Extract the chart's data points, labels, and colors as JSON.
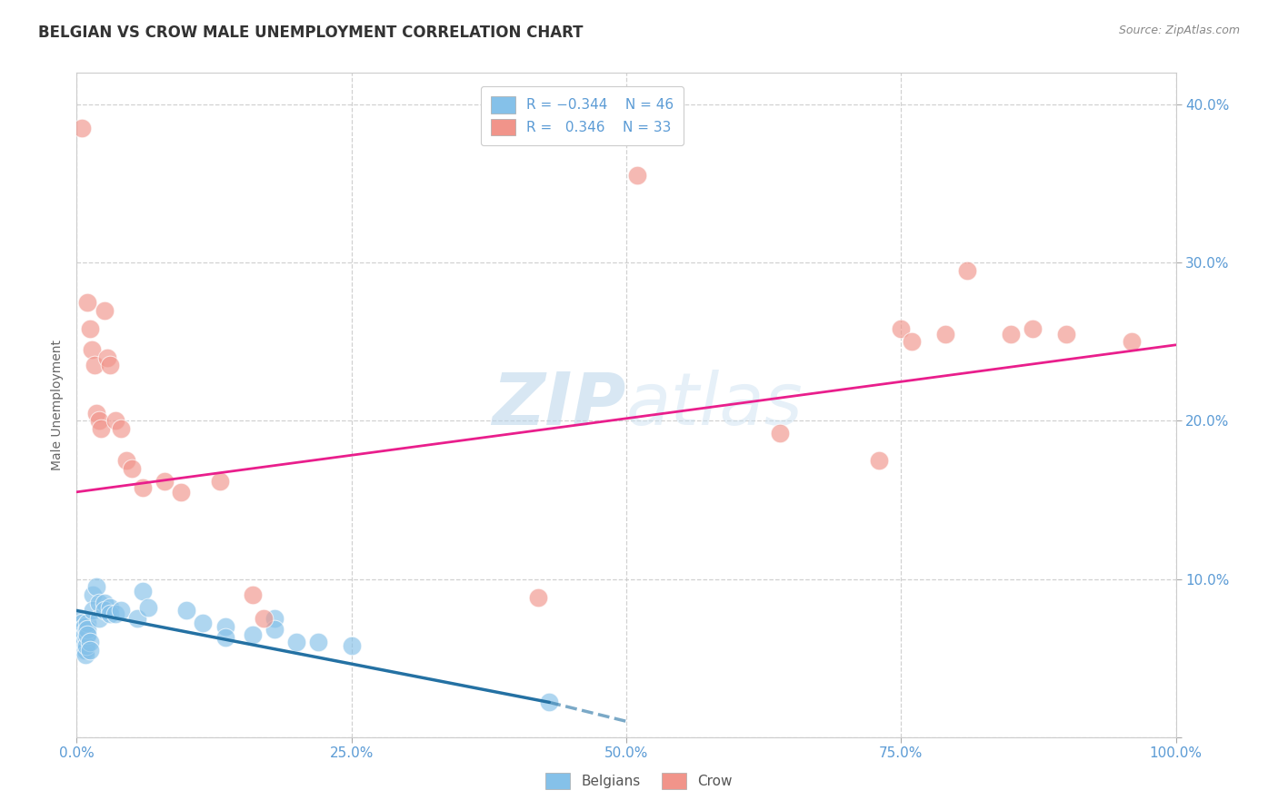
{
  "title": "BELGIAN VS CROW MALE UNEMPLOYMENT CORRELATION CHART",
  "source": "Source: ZipAtlas.com",
  "ylabel": "Male Unemployment",
  "xlim": [
    0,
    1.0
  ],
  "ylim": [
    0.0,
    0.42
  ],
  "background_color": "#ffffff",
  "grid_color": "#cccccc",
  "watermark_text": "ZIPatlas",
  "blue_color": "#85c1e9",
  "pink_color": "#f1948a",
  "blue_line_color": "#2471a3",
  "pink_line_color": "#e91e8c",
  "blue_scatter": [
    [
      0.005,
      0.075
    ],
    [
      0.005,
      0.072
    ],
    [
      0.005,
      0.068
    ],
    [
      0.005,
      0.065
    ],
    [
      0.006,
      0.062
    ],
    [
      0.006,
      0.058
    ],
    [
      0.006,
      0.055
    ],
    [
      0.007,
      0.07
    ],
    [
      0.007,
      0.065
    ],
    [
      0.007,
      0.06
    ],
    [
      0.008,
      0.058
    ],
    [
      0.008,
      0.055
    ],
    [
      0.008,
      0.052
    ],
    [
      0.009,
      0.068
    ],
    [
      0.009,
      0.063
    ],
    [
      0.009,
      0.058
    ],
    [
      0.01,
      0.072
    ],
    [
      0.01,
      0.068
    ],
    [
      0.01,
      0.065
    ],
    [
      0.012,
      0.06
    ],
    [
      0.012,
      0.055
    ],
    [
      0.015,
      0.09
    ],
    [
      0.015,
      0.08
    ],
    [
      0.018,
      0.095
    ],
    [
      0.02,
      0.085
    ],
    [
      0.02,
      0.075
    ],
    [
      0.025,
      0.085
    ],
    [
      0.025,
      0.08
    ],
    [
      0.03,
      0.082
    ],
    [
      0.03,
      0.078
    ],
    [
      0.035,
      0.078
    ],
    [
      0.04,
      0.08
    ],
    [
      0.055,
      0.075
    ],
    [
      0.06,
      0.092
    ],
    [
      0.065,
      0.082
    ],
    [
      0.1,
      0.08
    ],
    [
      0.115,
      0.072
    ],
    [
      0.135,
      0.07
    ],
    [
      0.135,
      0.063
    ],
    [
      0.16,
      0.065
    ],
    [
      0.18,
      0.075
    ],
    [
      0.18,
      0.068
    ],
    [
      0.2,
      0.06
    ],
    [
      0.22,
      0.06
    ],
    [
      0.25,
      0.058
    ],
    [
      0.43,
      0.022
    ]
  ],
  "pink_scatter": [
    [
      0.005,
      0.385
    ],
    [
      0.01,
      0.275
    ],
    [
      0.012,
      0.258
    ],
    [
      0.014,
      0.245
    ],
    [
      0.016,
      0.235
    ],
    [
      0.018,
      0.205
    ],
    [
      0.02,
      0.2
    ],
    [
      0.022,
      0.195
    ],
    [
      0.025,
      0.27
    ],
    [
      0.028,
      0.24
    ],
    [
      0.03,
      0.235
    ],
    [
      0.035,
      0.2
    ],
    [
      0.04,
      0.195
    ],
    [
      0.045,
      0.175
    ],
    [
      0.05,
      0.17
    ],
    [
      0.06,
      0.158
    ],
    [
      0.08,
      0.162
    ],
    [
      0.095,
      0.155
    ],
    [
      0.13,
      0.162
    ],
    [
      0.16,
      0.09
    ],
    [
      0.17,
      0.075
    ],
    [
      0.42,
      0.088
    ],
    [
      0.51,
      0.355
    ],
    [
      0.64,
      0.192
    ],
    [
      0.73,
      0.175
    ],
    [
      0.75,
      0.258
    ],
    [
      0.76,
      0.25
    ],
    [
      0.79,
      0.255
    ],
    [
      0.81,
      0.295
    ],
    [
      0.85,
      0.255
    ],
    [
      0.87,
      0.258
    ],
    [
      0.9,
      0.255
    ],
    [
      0.96,
      0.25
    ]
  ],
  "blue_trendline_solid": [
    [
      0.0,
      0.08
    ],
    [
      0.43,
      0.022
    ]
  ],
  "blue_trendline_dashed": [
    [
      0.43,
      0.022
    ],
    [
      0.5,
      0.01
    ]
  ],
  "pink_trendline": [
    [
      0.0,
      0.155
    ],
    [
      1.0,
      0.248
    ]
  ]
}
